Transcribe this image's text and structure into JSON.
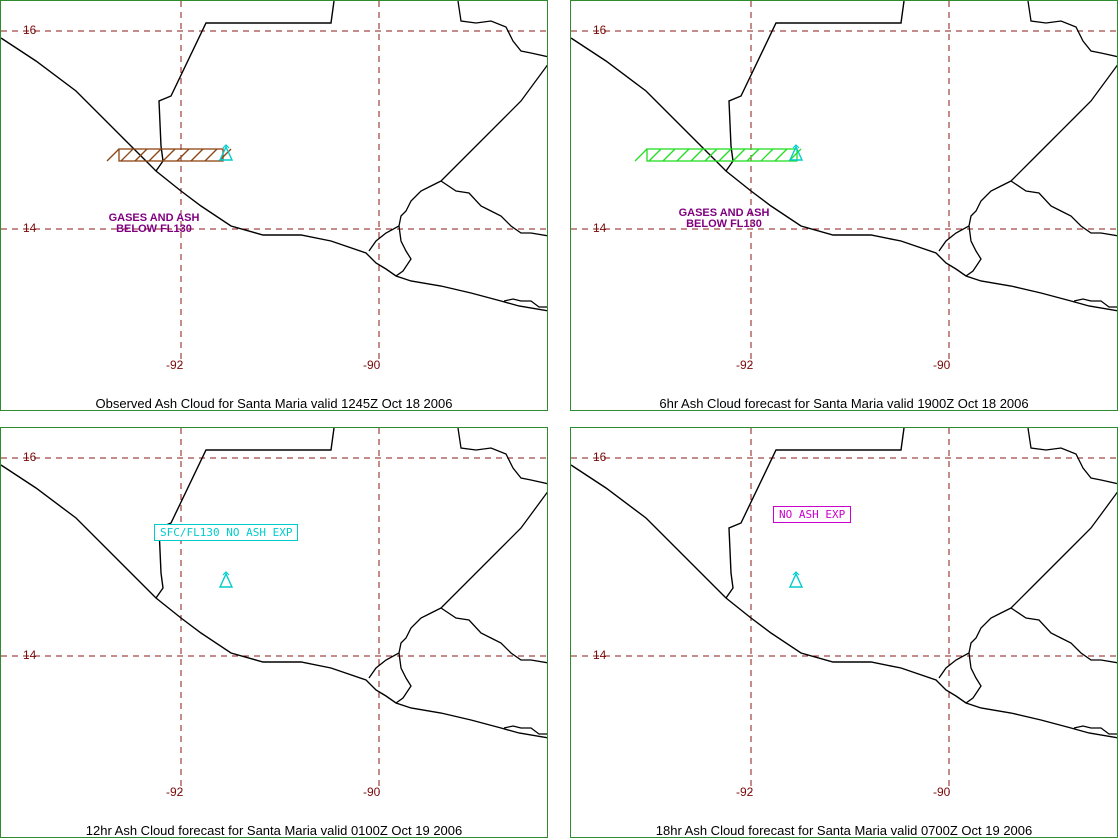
{
  "colors": {
    "frame": "#2e8b2e",
    "gridline": "#8b1a1a",
    "grid_label": "#7a0a0a",
    "coast": "#000000",
    "volcano": "#00cccc",
    "note": "#800080",
    "observed_ash": "#8b4513",
    "forecast_6hr_ash": "#22dd22",
    "box_12hr": "#00cccc",
    "box_18hr": "#cc00cc"
  },
  "grid": {
    "lat_labels": [
      "16",
      "14"
    ],
    "lon_labels": [
      "-92",
      "-90"
    ]
  },
  "panels": [
    {
      "caption": "Observed Ash Cloud for Santa  Maria valid 1245Z Oct 18 2006",
      "ash_area": "observed",
      "note_lines": [
        "GASES AND ASH",
        "BELOW FL130"
      ],
      "box_text": "",
      "volcano_icon": "volcano-icon"
    },
    {
      "caption": "6hr Ash Cloud forecast for Santa  Maria valid 1900Z Oct 18 2006",
      "ash_area": "forecast",
      "note_lines": [
        "GASES AND ASH",
        "BELOW FL130"
      ],
      "box_text": "",
      "volcano_icon": "volcano-icon"
    },
    {
      "caption": "12hr Ash Cloud forecast for Santa  Maria valid 0100Z Oct 19 2006",
      "ash_area": "none",
      "note_lines": [],
      "box_text": "SFC/FL130 NO ASH EXP",
      "volcano_icon": "volcano-icon"
    },
    {
      "caption": "18hr Ash Cloud forecast for Santa  Maria valid 0700Z Oct 19 2006",
      "ash_area": "none",
      "note_lines": [],
      "box_text": "NO ASH EXP",
      "volcano_icon": "volcano-icon"
    }
  ]
}
